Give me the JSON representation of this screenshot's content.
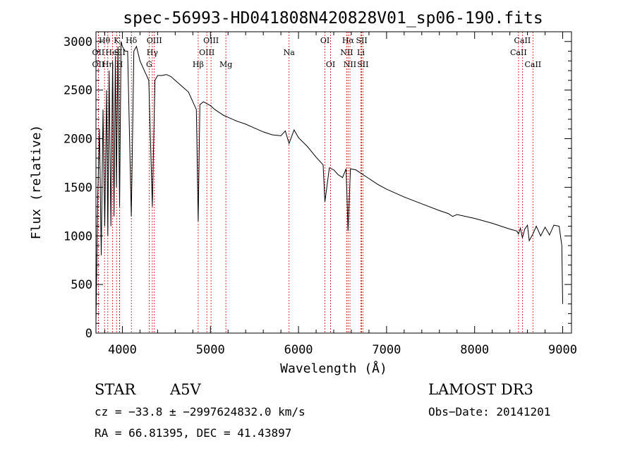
{
  "chart_data": {
    "type": "line",
    "title": "spec-56993-HD041808N420828V01_sp06-190.fits",
    "xlabel": "Wavelength (Å)",
    "ylabel": "Flux (relative)",
    "xlim": [
      3700,
      9100
    ],
    "ylim": [
      0,
      3100
    ],
    "xticks": [
      4000,
      5000,
      6000,
      7000,
      8000,
      9000
    ],
    "yticks": [
      0,
      500,
      1000,
      1500,
      2000,
      2500,
      3000
    ],
    "grid": false,
    "line_color": "#000000",
    "marker_color": "#cc0000",
    "spectrum": {
      "x": [
        3700,
        3720,
        3740,
        3760,
        3780,
        3800,
        3820,
        3835,
        3850,
        3870,
        3889,
        3905,
        3920,
        3933,
        3950,
        3968,
        3985,
        4000,
        4030,
        4060,
        4101,
        4130,
        4160,
        4200,
        4250,
        4300,
        4340,
        4370,
        4400,
        4450,
        4500,
        4550,
        4600,
        4650,
        4700,
        4750,
        4800,
        4840,
        4861,
        4880,
        4920,
        5000,
        5050,
        5100,
        5150,
        5200,
        5300,
        5400,
        5500,
        5600,
        5700,
        5800,
        5850,
        5893,
        5950,
        6000,
        6100,
        6200,
        6280,
        6300,
        6350,
        6400,
        6450,
        6500,
        6540,
        6563,
        6590,
        6650,
        6700,
        6800,
        6900,
        7000,
        7200,
        7400,
        7600,
        7700,
        7750,
        7800,
        8000,
        8200,
        8400,
        8480,
        8498,
        8520,
        8542,
        8570,
        8600,
        8620,
        8662,
        8700,
        8750,
        8800,
        8850,
        8900,
        8960,
        8990,
        9000
      ],
      "y": [
        100,
        1400,
        2100,
        800,
        2300,
        1100,
        2500,
        1000,
        2700,
        1100,
        2800,
        1200,
        2850,
        1500,
        2950,
        1300,
        3000,
        2950,
        2900,
        2900,
        1200,
        2900,
        2950,
        2800,
        2700,
        2600,
        1300,
        2600,
        2650,
        2650,
        2660,
        2640,
        2600,
        2560,
        2520,
        2480,
        2380,
        2300,
        1150,
        2350,
        2380,
        2340,
        2300,
        2270,
        2240,
        2220,
        2180,
        2150,
        2110,
        2070,
        2040,
        2030,
        2080,
        1950,
        2090,
        2010,
        1920,
        1810,
        1730,
        1350,
        1700,
        1680,
        1630,
        1600,
        1690,
        1050,
        1690,
        1680,
        1650,
        1590,
        1530,
        1480,
        1400,
        1330,
        1260,
        1230,
        1200,
        1220,
        1180,
        1130,
        1070,
        1050,
        1020,
        1080,
        980,
        1070,
        1110,
        950,
        1020,
        1100,
        1000,
        1090,
        1010,
        1110,
        1100,
        900,
        300
      ]
    },
    "lines": [
      {
        "wave": 3797,
        "label": "Hθ",
        "row": 1
      },
      {
        "wave": 3727,
        "label": "OII",
        "row": 2
      },
      {
        "wave": 3727,
        "label": "OII",
        "row": 3
      },
      {
        "wave": 3835,
        "label": "Hη",
        "row": 3
      },
      {
        "wave": 3889,
        "label": "HeI",
        "row": 2
      },
      {
        "wave": 3934,
        "label": "K",
        "row": 1
      },
      {
        "wave": 3968,
        "label": "H",
        "row": 3
      },
      {
        "wave": 3970,
        "label": "SII",
        "row": 2
      },
      {
        "wave": 4102,
        "label": "Hδ",
        "row": 1
      },
      {
        "wave": 4304,
        "label": "G",
        "row": 3
      },
      {
        "wave": 4340,
        "label": "Hγ",
        "row": 2
      },
      {
        "wave": 4363,
        "label": "OIII",
        "row": 1
      },
      {
        "wave": 4861,
        "label": "Hβ",
        "row": 3
      },
      {
        "wave": 4959,
        "label": "OIII",
        "row": 2
      },
      {
        "wave": 5007,
        "label": "OIII",
        "row": 1
      },
      {
        "wave": 5175,
        "label": "Mg",
        "row": 3
      },
      {
        "wave": 5893,
        "label": "Na",
        "row": 2
      },
      {
        "wave": 6300,
        "label": "OI",
        "row": 1
      },
      {
        "wave": 6364,
        "label": "OI",
        "row": 3
      },
      {
        "wave": 6548,
        "label": "NII",
        "row": 2
      },
      {
        "wave": 6563,
        "label": "Hα",
        "row": 1
      },
      {
        "wave": 6584,
        "label": "NII",
        "row": 3
      },
      {
        "wave": 6708,
        "label": "Li",
        "row": 2
      },
      {
        "wave": 6717,
        "label": "SII",
        "row": 1
      },
      {
        "wave": 6731,
        "label": "SII",
        "row": 3
      },
      {
        "wave": 8498,
        "label": "CaII",
        "row": 2
      },
      {
        "wave": 8542,
        "label": "CaII",
        "row": 1
      },
      {
        "wave": 8662,
        "label": "CaII",
        "row": 3
      }
    ]
  },
  "info": {
    "class": "STAR",
    "subclass": "A5V",
    "survey": "LAMOST DR3",
    "cz": "cz = −33.8 ± −2997624832.0 km/s",
    "obs_date": "Obs−Date: 20141201",
    "coords": "RA =  66.81395, DEC =  41.43897"
  }
}
